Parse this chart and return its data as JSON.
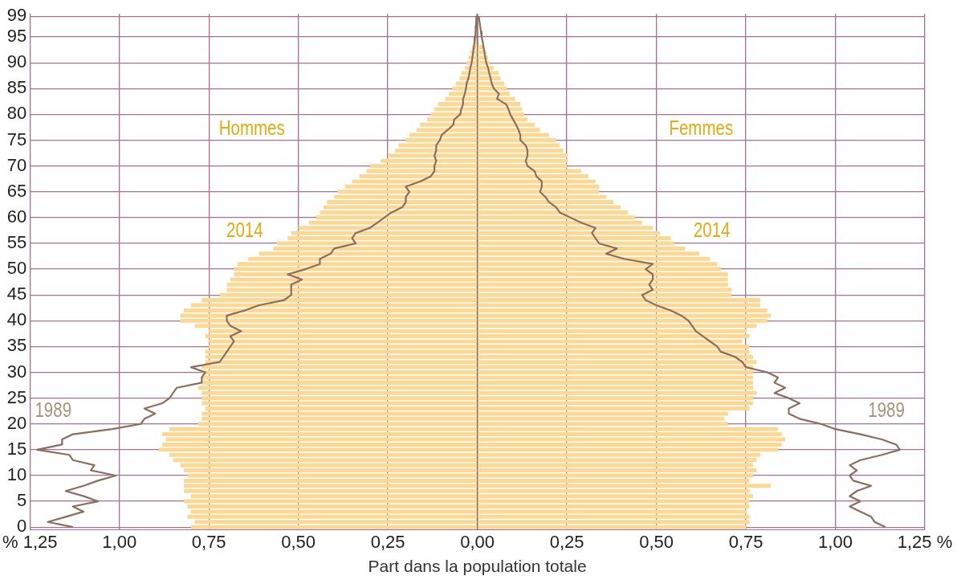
{
  "chart_data": {
    "type": "bar",
    "orientation": "horizontal",
    "xlabel": "Part dans la population totale",
    "categories": [
      "99",
      null,
      null,
      null,
      "95",
      null,
      null,
      null,
      null,
      "90",
      null,
      null,
      null,
      null,
      "85",
      null,
      null,
      null,
      null,
      "80",
      null,
      null,
      null,
      null,
      "75",
      null,
      null,
      null,
      null,
      "70",
      null,
      null,
      null,
      null,
      "65",
      null,
      null,
      null,
      null,
      "60",
      null,
      null,
      null,
      null,
      "55",
      null,
      null,
      null,
      null,
      "50",
      null,
      null,
      null,
      null,
      "45",
      null,
      null,
      null,
      null,
      "40",
      null,
      null,
      null,
      null,
      "35",
      null,
      null,
      null,
      null,
      "30",
      null,
      null,
      null,
      null,
      "25",
      null,
      null,
      null,
      null,
      "20",
      null,
      null,
      null,
      null,
      "15",
      null,
      null,
      null,
      null,
      "10",
      null,
      null,
      null,
      null,
      "5",
      null,
      null,
      null,
      null,
      "0"
    ],
    "xlim": [
      -1.25,
      1.25
    ],
    "xticks": [
      {
        "value": -1.25,
        "label": "% 1,25"
      },
      {
        "value": -1,
        "label": "1,00"
      },
      {
        "value": -0.75,
        "label": "0,75"
      },
      {
        "value": -0.5,
        "label": "0,50"
      },
      {
        "value": -0.25,
        "label": "0,25"
      },
      {
        "value": 0,
        "label": "0,00"
      },
      {
        "value": 0.25,
        "label": "0,25"
      },
      {
        "value": 0.5,
        "label": "0,50"
      },
      {
        "value": 0.75,
        "label": "0,75"
      },
      {
        "value": 1,
        "label": "1,00"
      },
      {
        "value": 1.25,
        "label": "1,25 %"
      }
    ],
    "grid": true,
    "legend": false,
    "stacked": true,
    "ref_lines": [
      {
        "axis": "x",
        "value": 0,
        "color": "#8c6e5e"
      }
    ],
    "series": [
      {
        "type": "bar",
        "color": "#fbd896",
        "values": [
          null,
          null,
          null,
          null,
          null,
          -0.01,
          -0.015,
          -0.02,
          -0.025,
          -0.03,
          -0.035,
          -0.045,
          -0.05,
          -0.06,
          -0.07,
          -0.08,
          -0.09,
          -0.11,
          -0.12,
          -0.13,
          -0.14,
          -0.16,
          -0.17,
          -0.19,
          -0.2,
          -0.22,
          -0.23,
          -0.25,
          -0.27,
          -0.3,
          -0.31,
          -0.33,
          -0.35,
          -0.37,
          -0.39,
          -0.4,
          -0.42,
          -0.43,
          -0.44,
          -0.45,
          -0.47,
          -0.5,
          -0.52,
          -0.53,
          -0.56,
          -0.57,
          -0.61,
          -0.64,
          -0.67,
          -0.68,
          -0.68,
          -0.69,
          -0.7,
          -0.7,
          -0.72,
          -0.77,
          -0.8,
          -0.82,
          -0.83,
          -0.83,
          -0.79,
          -0.75,
          -0.76,
          -0.75,
          -0.75,
          -0.76,
          -0.76,
          -0.76,
          -0.77,
          -0.77,
          -0.77,
          -0.77,
          -0.78,
          -0.77,
          -0.77,
          -0.77,
          -0.76,
          -0.77,
          -0.77,
          -0.78,
          -0.86,
          -0.88,
          -0.87,
          -0.88,
          -0.89,
          -0.86,
          -0.85,
          -0.83,
          -0.82,
          -0.81,
          -0.82,
          -0.82,
          -0.82,
          -0.8,
          -0.82,
          -0.81,
          -0.8,
          -0.81,
          -0.79,
          -0.8
        ]
      },
      {
        "type": "bar",
        "color": "#fbd896",
        "values": [
          null,
          null,
          null,
          null,
          null,
          null,
          0.02,
          0.025,
          0.03,
          0.035,
          0.045,
          0.06,
          0.065,
          0.075,
          0.083,
          0.09,
          0.105,
          0.12,
          0.125,
          0.13,
          0.14,
          0.16,
          0.175,
          0.2,
          0.22,
          0.23,
          0.24,
          0.25,
          0.25,
          0.25,
          0.29,
          0.31,
          0.33,
          0.34,
          0.34,
          0.36,
          0.38,
          0.4,
          0.42,
          0.44,
          0.46,
          0.49,
          0.51,
          0.54,
          0.55,
          0.58,
          0.62,
          0.65,
          0.67,
          0.68,
          0.7,
          0.7,
          0.7,
          0.71,
          0.71,
          0.79,
          0.79,
          0.81,
          0.82,
          0.81,
          0.78,
          0.75,
          0.76,
          0.74,
          0.76,
          0.76,
          0.77,
          0.78,
          0.77,
          0.77,
          0.77,
          0.77,
          0.77,
          0.78,
          0.77,
          0.77,
          0.76,
          0.7,
          0.69,
          0.7,
          0.84,
          0.85,
          0.86,
          0.85,
          0.84,
          0.79,
          0.78,
          0.77,
          0.78,
          0.77,
          0.76,
          0.82,
          0.76,
          0.77,
          0.76,
          0.76,
          0.75,
          0.76,
          0.76,
          0.75
        ]
      },
      {
        "type": "line",
        "color": "#8c6e5e",
        "values": [
          -0.002,
          -0.003,
          -0.004,
          -0.005,
          -0.006,
          -0.008,
          -0.01,
          -0.012,
          -0.014,
          -0.016,
          -0.02,
          -0.022,
          -0.025,
          -0.03,
          -0.032,
          -0.035,
          -0.04,
          -0.04,
          -0.045,
          -0.048,
          -0.065,
          -0.067,
          -0.083,
          -0.1,
          -0.105,
          -0.115,
          -0.115,
          -0.12,
          -0.115,
          -0.12,
          -0.12,
          -0.13,
          -0.16,
          -0.2,
          -0.19,
          -0.2,
          -0.2,
          -0.21,
          -0.24,
          -0.26,
          -0.28,
          -0.3,
          -0.34,
          -0.35,
          -0.34,
          -0.4,
          -0.41,
          -0.44,
          -0.44,
          -0.48,
          -0.53,
          -0.49,
          -0.52,
          -0.52,
          -0.52,
          -0.54,
          -0.61,
          -0.65,
          -0.7,
          -0.7,
          -0.69,
          -0.66,
          -0.69,
          -0.68,
          -0.69,
          -0.7,
          -0.71,
          -0.72,
          -0.8,
          -0.76,
          -0.77,
          -0.77,
          -0.84,
          -0.85,
          -0.86,
          -0.88,
          -0.93,
          -0.9,
          -0.93,
          -0.94,
          -1.02,
          -1.13,
          -1.16,
          -1.16,
          -1.23,
          -1.14,
          -1.13,
          -1.07,
          -1.08,
          -1.01,
          -1.06,
          -1.1,
          -1.15,
          -1.1,
          -1.06,
          -1.13,
          -1.1,
          -1.15,
          -1.2,
          -1.13
        ]
      },
      {
        "type": "line",
        "color": "#8c6e5e",
        "values": [
          0.004,
          0.006,
          0.008,
          0.01,
          0.012,
          0.015,
          0.017,
          0.02,
          0.022,
          0.025,
          0.03,
          0.033,
          0.037,
          0.04,
          0.046,
          0.06,
          0.055,
          0.08,
          0.087,
          0.092,
          0.1,
          0.108,
          0.115,
          0.12,
          0.12,
          0.135,
          0.14,
          0.14,
          0.135,
          0.14,
          0.16,
          0.165,
          0.18,
          0.18,
          0.175,
          0.19,
          0.2,
          0.22,
          0.23,
          0.26,
          0.29,
          0.33,
          0.32,
          0.33,
          0.34,
          0.39,
          0.36,
          0.41,
          0.49,
          0.47,
          0.49,
          0.49,
          0.48,
          0.49,
          0.46,
          0.47,
          0.5,
          0.54,
          0.57,
          0.59,
          0.6,
          0.61,
          0.63,
          0.65,
          0.67,
          0.68,
          0.72,
          0.74,
          0.75,
          0.81,
          0.84,
          0.83,
          0.86,
          0.83,
          0.87,
          0.9,
          0.87,
          0.87,
          0.9,
          0.96,
          1,
          1.07,
          1.13,
          1.17,
          1.18,
          1.13,
          1.07,
          1.04,
          1.06,
          1.04,
          1.05,
          1.1,
          1.06,
          1.04,
          1.07,
          1.04,
          1.07,
          1.1,
          1.11,
          1.14
        ]
      }
    ],
    "annotations": [
      "Hommes",
      "Femmes",
      "2014",
      "2014",
      "1989",
      "1989"
    ]
  }
}
